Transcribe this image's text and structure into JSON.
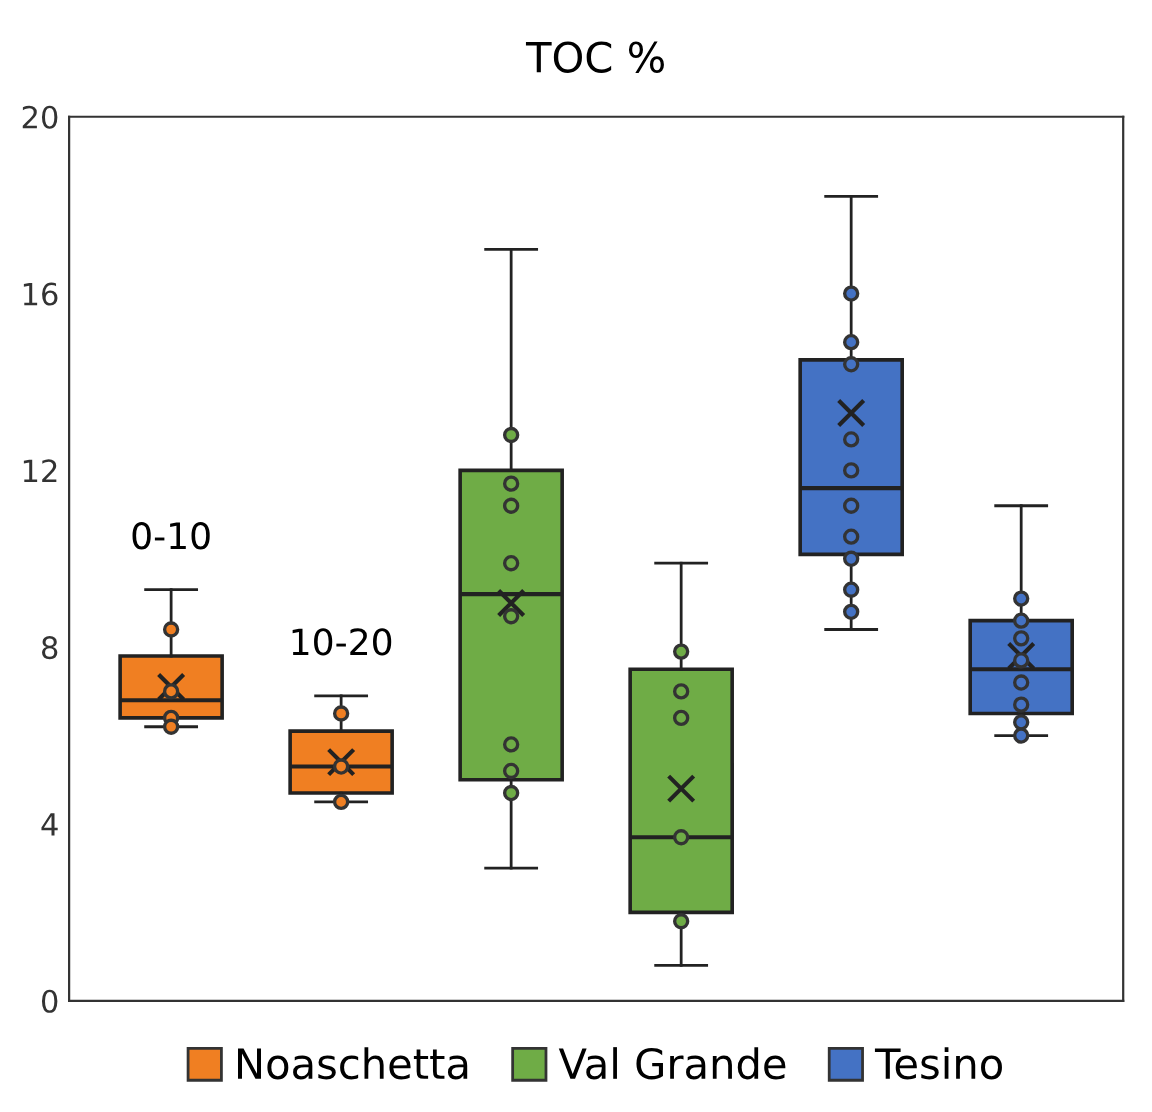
{
  "chart_data": {
    "type": "box",
    "title": "TOC %",
    "categories": [
      null,
      null,
      null,
      null,
      null,
      null
    ],
    "series": [
      {
        "name": "Noaschetta",
        "color": "#f07f22",
        "boxes": [
          {
            "low": 6.2,
            "q1": 6.4,
            "median": 6.8,
            "q3": 7.8,
            "high": 9.3,
            "mean": 7.1
          },
          {
            "low": 4.5,
            "q1": 4.7,
            "median": 5.3,
            "q3": 6.1,
            "high": 6.9,
            "mean": 5.4
          },
          null,
          null,
          null,
          null
        ]
      },
      {
        "name": "Val Grande",
        "color": "#6fac46",
        "boxes": [
          null,
          null,
          {
            "low": 3.0,
            "q1": 5.0,
            "median": 9.2,
            "q3": 12.0,
            "high": 17.0,
            "mean": 9.0
          },
          {
            "low": 0.8,
            "q1": 2.0,
            "median": 3.7,
            "q3": 7.5,
            "high": 9.9,
            "mean": 4.8
          },
          null,
          null
        ]
      },
      {
        "name": "Tesino",
        "color": "#4472c4",
        "boxes": [
          null,
          null,
          null,
          null,
          {
            "low": 8.4,
            "q1": 10.1,
            "median": 11.6,
            "q3": 14.5,
            "high": 18.2,
            "mean": 13.3
          },
          {
            "low": 6.0,
            "q1": 6.5,
            "median": 7.5,
            "q3": 8.6,
            "high": 11.2,
            "mean": 7.8
          }
        ]
      },
      {
        "type": "scatter",
        "colors": [
          "#f07f22",
          "#f07f22",
          "#6fac46",
          "#6fac46",
          "#4472c4",
          "#4472c4"
        ],
        "values": [
          8.4,
          6.5,
          12.8,
          7.9,
          16.0,
          9.1
        ]
      },
      {
        "type": "scatter",
        "colors": [
          "#f07f22",
          "#f07f22",
          "#6fac46",
          "#6fac46",
          "#4472c4",
          "#4472c4"
        ],
        "values": [
          7.0,
          5.3,
          11.7,
          7.0,
          14.9,
          8.6
        ]
      },
      {
        "type": "scatter",
        "colors": [
          "#f07f22",
          "#f07f22",
          "#6fac46",
          "#6fac46",
          "#4472c4",
          "#4472c4"
        ],
        "values": [
          6.4,
          4.5,
          11.2,
          6.4,
          14.4,
          8.2
        ]
      },
      {
        "type": "scatter",
        "colors": [
          "#f07f22",
          "#f07f22",
          "#6fac46",
          "#6fac46",
          "#4472c4",
          "#4472c4"
        ],
        "values": [
          6.2,
          null,
          9.9,
          3.7,
          12.7,
          7.7
        ]
      },
      {
        "type": "scatter",
        "colors": [
          "#f07f22",
          "#f07f22",
          "#6fac46",
          "#6fac46",
          "#4472c4",
          "#4472c4"
        ],
        "values": [
          null,
          null,
          8.7,
          1.8,
          12.0,
          7.2
        ]
      },
      {
        "type": "scatter",
        "colors": [
          "#f07f22",
          "#f07f22",
          "#6fac46",
          "#6fac46",
          "#4472c4",
          "#4472c4"
        ],
        "values": [
          null,
          null,
          5.8,
          null,
          11.2,
          6.7
        ]
      },
      {
        "type": "scatter",
        "colors": [
          "#f07f22",
          "#f07f22",
          "#6fac46",
          "#6fac46",
          "#4472c4",
          "#4472c4"
        ],
        "values": [
          null,
          null,
          5.2,
          null,
          10.5,
          6.3
        ]
      },
      {
        "type": "scatter",
        "colors": [
          "#f07f22",
          "#f07f22",
          "#6fac46",
          "#6fac46",
          "#4472c4",
          "#4472c4"
        ],
        "values": [
          null,
          null,
          4.7,
          null,
          10.0,
          6.0
        ]
      },
      {
        "type": "scatter",
        "colors": [
          "#f07f22",
          "#f07f22",
          "#6fac46",
          "#6fac46",
          "#4472c4",
          "#4472c4"
        ],
        "values": [
          null,
          null,
          null,
          null,
          9.3,
          null
        ]
      },
      {
        "type": "scatter",
        "colors": [
          "#f07f22",
          "#f07f22",
          "#6fac46",
          "#6fac46",
          "#4472c4",
          "#4472c4"
        ],
        "values": [
          null,
          null,
          null,
          null,
          8.8,
          null
        ]
      }
    ],
    "annotations": [
      {
        "text": "0-10",
        "y": 9.3
      },
      {
        "text": "10-20",
        "y": 6.9
      }
    ],
    "ylim": [
      0,
      20
    ],
    "yticks": [
      0,
      4,
      8,
      12,
      16,
      20
    ],
    "grid": false,
    "legend": "bottom",
    "marker": "circle"
  }
}
